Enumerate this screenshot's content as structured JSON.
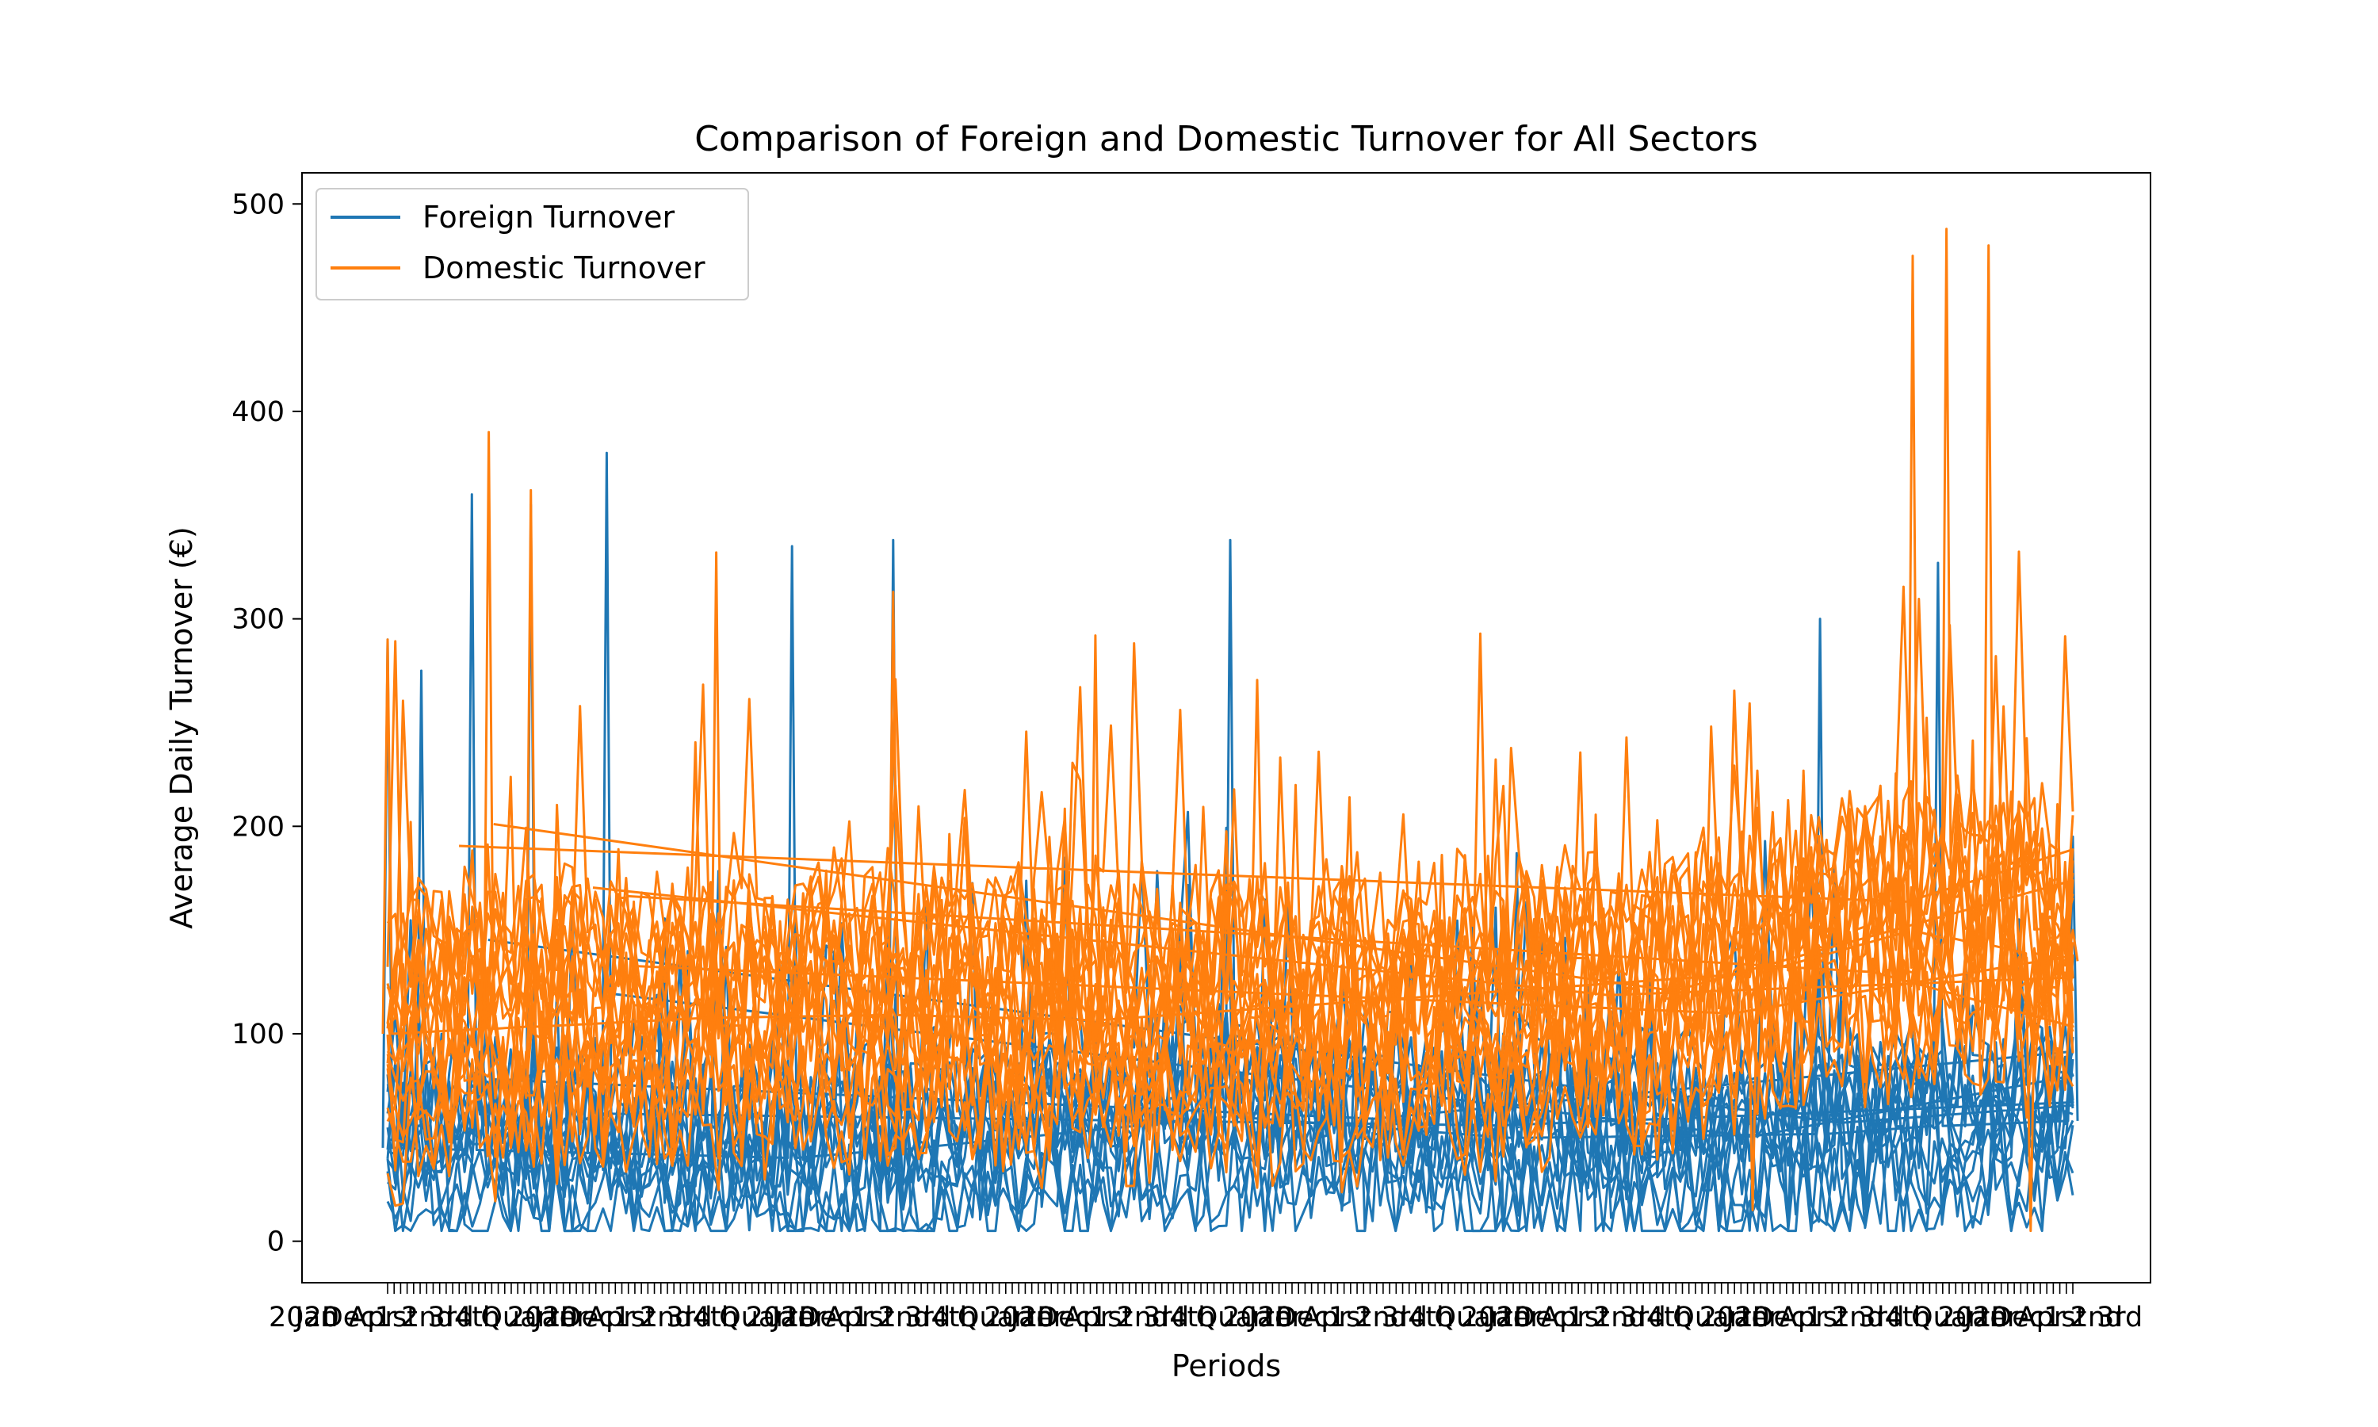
{
  "chart_data": {
    "type": "line",
    "title": "Comparison of Foreign and Domestic Turnover for All Sectors",
    "xlabel": "Periods",
    "ylabel": "Average Daily Turnover (€)",
    "ylim": [
      -20,
      515
    ],
    "yticks": [
      0,
      100,
      200,
      300,
      400,
      500
    ],
    "grid": false,
    "legend_position": "top-left",
    "colors": {
      "foreign": "#1f77b4",
      "domestic": "#ff7f0e"
    },
    "x_tick_labels_note": "dense overlapping period labels, illegible",
    "x_tick_label_fragments": [
      "2020",
      "Jan",
      "Dec",
      "Apr",
      "1st",
      "2nd",
      "3rd",
      "4th",
      "Quarter"
    ],
    "series": [
      {
        "name": "Foreign Turnover",
        "color": "#1f77b4",
        "key_points": [
          {
            "x": 0.0,
            "y": 290
          },
          {
            "x": 0.02,
            "y": 275
          },
          {
            "x": 0.05,
            "y": 360
          },
          {
            "x": 0.085,
            "y": 355
          },
          {
            "x": 0.13,
            "y": 380
          },
          {
            "x": 0.24,
            "y": 335
          },
          {
            "x": 0.3,
            "y": 338
          },
          {
            "x": 0.5,
            "y": 338
          },
          {
            "x": 0.67,
            "y": 187
          },
          {
            "x": 0.85,
            "y": 300
          },
          {
            "x": 0.92,
            "y": 327
          },
          {
            "x": 1.0,
            "y": 195
          }
        ],
        "baseline": [
          {
            "x": 0.0,
            "y": 45
          },
          {
            "x": 0.25,
            "y": 40
          },
          {
            "x": 0.5,
            "y": 60
          },
          {
            "x": 0.75,
            "y": 45
          },
          {
            "x": 0.9,
            "y": 55
          },
          {
            "x": 1.0,
            "y": 58
          }
        ]
      },
      {
        "name": "Domestic Turnover",
        "color": "#ff7f0e",
        "key_points": [
          {
            "x": 0.0,
            "y": 290
          },
          {
            "x": 0.06,
            "y": 390
          },
          {
            "x": 0.085,
            "y": 362
          },
          {
            "x": 0.195,
            "y": 332
          },
          {
            "x": 0.3,
            "y": 313
          },
          {
            "x": 0.42,
            "y": 292
          },
          {
            "x": 0.81,
            "y": 15
          },
          {
            "x": 0.905,
            "y": 475
          },
          {
            "x": 0.925,
            "y": 488
          },
          {
            "x": 0.95,
            "y": 480
          },
          {
            "x": 0.975,
            "y": 5
          },
          {
            "x": 1.0,
            "y": 150
          }
        ],
        "baseline": [
          {
            "x": 0.0,
            "y": 100
          },
          {
            "x": 0.25,
            "y": 110
          },
          {
            "x": 0.5,
            "y": 105
          },
          {
            "x": 0.75,
            "y": 115
          },
          {
            "x": 0.9,
            "y": 150
          },
          {
            "x": 1.0,
            "y": 135
          }
        ]
      }
    ]
  }
}
